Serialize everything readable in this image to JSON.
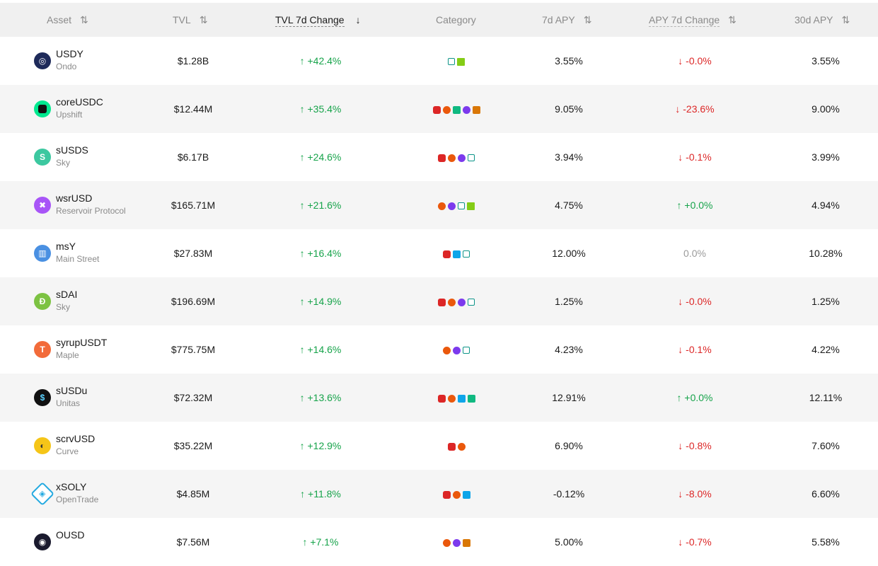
{
  "header": {
    "asset": "Asset",
    "tvl": "TVL",
    "tvl_change": "TVL 7d Change",
    "category": "Category",
    "apy7": "7d APY",
    "apy_change": "APY 7d Change",
    "apy30": "30d APY",
    "sort_glyph": "⇅",
    "sort_active_glyph": "↓"
  },
  "rows": [
    {
      "name": "USDY",
      "protocol": "Ondo",
      "tvl": "$1.28B",
      "tvl_change": "↑ +42.4%",
      "apy7": "3.55%",
      "apy_change": "↓ -0.0%",
      "apy30": "3.55%"
    },
    {
      "name": "coreUSDC",
      "protocol": "Upshift",
      "tvl": "$12.44M",
      "tvl_change": "↑ +35.4%",
      "apy7": "9.05%",
      "apy_change": "↓ -23.6%",
      "apy30": "9.00%"
    },
    {
      "name": "sUSDS",
      "protocol": "Sky",
      "tvl": "$6.17B",
      "tvl_change": "↑ +24.6%",
      "apy7": "3.94%",
      "apy_change": "↓ -0.1%",
      "apy30": "3.99%"
    },
    {
      "name": "wsrUSD",
      "protocol": "Reservoir Protocol",
      "tvl": "$165.71M",
      "tvl_change": "↑ +21.6%",
      "apy7": "4.75%",
      "apy_change": "↑ +0.0%",
      "apy30": "4.94%"
    },
    {
      "name": "msY",
      "protocol": "Main Street",
      "tvl": "$27.83M",
      "tvl_change": "↑ +16.4%",
      "apy7": "12.00%",
      "apy_change": "0.0%",
      "apy30": "10.28%"
    },
    {
      "name": "sDAI",
      "protocol": "Sky",
      "tvl": "$196.69M",
      "tvl_change": "↑ +14.9%",
      "apy7": "1.25%",
      "apy_change": "↓ -0.0%",
      "apy30": "1.25%"
    },
    {
      "name": "syrupUSDT",
      "protocol": "Maple",
      "tvl": "$775.75M",
      "tvl_change": "↑ +14.6%",
      "apy7": "4.23%",
      "apy_change": "↓ -0.1%",
      "apy30": "4.22%"
    },
    {
      "name": "sUSDu",
      "protocol": "Unitas",
      "tvl": "$72.32M",
      "tvl_change": "↑ +13.6%",
      "apy7": "12.91%",
      "apy_change": "↑ +0.0%",
      "apy30": "12.11%"
    },
    {
      "name": "scrvUSD",
      "protocol": "Curve",
      "tvl": "$35.22M",
      "tvl_change": "↑ +12.9%",
      "apy7": "6.90%",
      "apy_change": "↓ -0.8%",
      "apy30": "7.60%"
    },
    {
      "name": "xSOLY",
      "protocol": "OpenTrade",
      "tvl": "$4.85M",
      "tvl_change": "↑ +11.8%",
      "apy7": "-0.12%",
      "apy_change": "↓ -8.0%",
      "apy30": "6.60%"
    },
    {
      "name": "OUSD",
      "protocol": "",
      "tvl": "$7.56M",
      "tvl_change": "↑ +7.1%",
      "apy7": "5.00%",
      "apy_change": "↓ -0.7%",
      "apy30": "5.58%"
    }
  ],
  "styles": {
    "up_color": "#16a34a",
    "down_color": "#dc2626",
    "row_alt_bg": "#f5f5f5"
  }
}
